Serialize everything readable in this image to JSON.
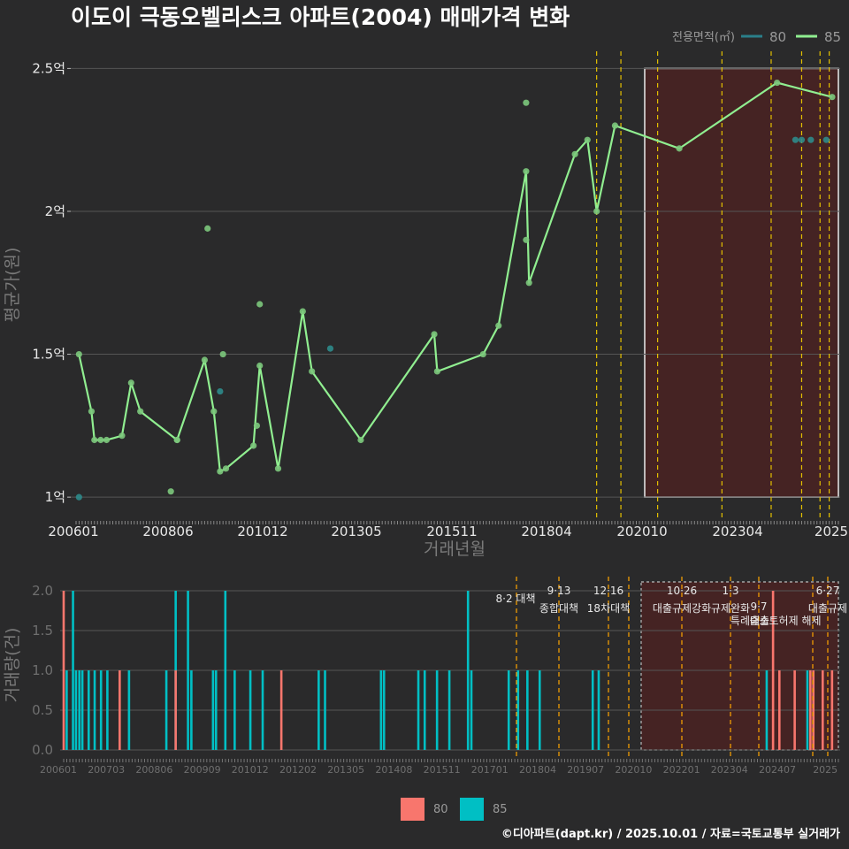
{
  "title": "이도이 극동오벨리스크 아파트(2004) 매매가격 변화",
  "footer": "©디아파트(dapt.kr) / 2025.10.01 / 자료=국토교통부 실거래가",
  "colors": {
    "background": "#2a2a2b",
    "grid": "#555555",
    "series_80_line": "#2a7f8a",
    "series_85_line": "#90ee90",
    "series_80_bar": "#f8766d",
    "series_85_bar": "#00bfc4",
    "policy_line": "#e5c100",
    "policy_line_bottom": "#ffa500",
    "highlight_fill": "#4a2222",
    "highlight_border": "#ffffff"
  },
  "chart_data": [
    {
      "type": "line",
      "name": "price",
      "xlabel": "거래년월",
      "ylabel": "평균가(원)",
      "ylim": [
        0.92,
        2.56
      ],
      "yticks": [
        {
          "v": 1.0,
          "label": "1억"
        },
        {
          "v": 1.5,
          "label": "1.5억"
        },
        {
          "v": 2.0,
          "label": "2억"
        },
        {
          "v": 2.5,
          "label": "2.5억"
        }
      ],
      "xticks": [
        "200601",
        "200806",
        "201012",
        "201305",
        "201511",
        "201804",
        "202010",
        "202304",
        "2025"
      ],
      "legend": {
        "title": "전용면적(㎡)",
        "entries": [
          "80",
          "85"
        ]
      },
      "series": [
        {
          "name": "85",
          "line": true,
          "points": [
            [
              2006.08,
              1.5
            ],
            [
              2006.42,
              1.3
            ],
            [
              2006.5,
              1.2
            ],
            [
              2006.67,
              1.2
            ],
            [
              2006.83,
              1.2
            ],
            [
              2007.25,
              1.215
            ],
            [
              2007.5,
              1.4
            ],
            [
              2007.75,
              1.3
            ],
            [
              2008.75,
              1.2
            ],
            [
              2009.5,
              1.48
            ],
            [
              2009.75,
              1.3
            ],
            [
              2009.92,
              1.09
            ],
            [
              2010.08,
              1.1
            ],
            [
              2010.83,
              1.18
            ],
            [
              2011.0,
              1.46
            ],
            [
              2011.5,
              1.1
            ],
            [
              2012.17,
              1.65
            ],
            [
              2012.42,
              1.44
            ],
            [
              2013.75,
              1.2
            ],
            [
              2015.75,
              1.57
            ],
            [
              2015.83,
              1.44
            ],
            [
              2017.08,
              1.5
            ],
            [
              2017.5,
              1.6
            ],
            [
              2018.25,
              2.14
            ],
            [
              2018.33,
              1.75
            ],
            [
              2019.58,
              2.2
            ],
            [
              2019.92,
              2.25
            ],
            [
              2020.17,
              2.0
            ],
            [
              2020.67,
              2.3
            ],
            [
              2022.42,
              2.22
            ],
            [
              2025.08,
              2.45
            ],
            [
              2026.58,
              2.4
            ]
          ]
        },
        {
          "name": "85-extra",
          "line": false,
          "points": [
            [
              2008.58,
              1.02
            ],
            [
              2010.0,
              1.5
            ],
            [
              2009.58,
              1.94
            ],
            [
              2010.92,
              1.25
            ],
            [
              2011.0,
              1.675
            ],
            [
              2018.25,
              1.9
            ],
            [
              2018.25,
              2.38
            ],
            [
              2008.75,
              1.2
            ]
          ]
        },
        {
          "name": "80",
          "line": false,
          "points": [
            [
              2006.08,
              1.0
            ],
            [
              2009.92,
              1.37
            ],
            [
              2012.92,
              1.52
            ],
            [
              2025.58,
              2.25
            ],
            [
              2025.75,
              2.25
            ],
            [
              2026.0,
              2.25
            ],
            [
              2026.42,
              2.25
            ]
          ]
        }
      ],
      "policy_dates": [
        2020.17,
        2020.83,
        2021.83,
        2023.58,
        2024.92,
        2025.75,
        2026.25,
        2026.5
      ]
    },
    {
      "type": "bar",
      "name": "volume",
      "ylabel": "거래량(건)",
      "ylim": [
        0,
        2.0
      ],
      "yticks": [
        "0.0",
        "0.5",
        "1.0",
        "1.5",
        "2.0"
      ],
      "xticks": [
        "200601",
        "200703",
        "200806",
        "200909",
        "201012",
        "201202",
        "201305",
        "201408",
        "201511",
        "201701",
        "201804",
        "201907",
        "202010",
        "202201",
        "202304",
        "202407",
        "2025"
      ],
      "legend": [
        "80",
        "85"
      ],
      "annotations": [
        {
          "date": "8·2 대책",
          "label": ""
        },
        {
          "date": "9·13",
          "label": "종합대책"
        },
        {
          "date": "12·16",
          "label": "18차대책"
        },
        {
          "date": "10·26",
          "label": "대출규제강화"
        },
        {
          "date": "1·3",
          "label": "규제완화"
        },
        {
          "date": "",
          "label": "특례대출"
        },
        {
          "date": "9·7",
          "label": "출소토허제 해제"
        },
        {
          "date": "6·27",
          "label": "대출규제"
        }
      ],
      "bars_85": [
        [
          2006.08,
          1
        ],
        [
          2006.25,
          2
        ],
        [
          2006.33,
          1
        ],
        [
          2006.42,
          1
        ],
        [
          2006.5,
          1
        ],
        [
          2006.67,
          1
        ],
        [
          2006.83,
          1
        ],
        [
          2007.0,
          1
        ],
        [
          2007.17,
          1
        ],
        [
          2007.75,
          1
        ],
        [
          2008.75,
          1
        ],
        [
          2009.0,
          2
        ],
        [
          2009.33,
          2
        ],
        [
          2009.42,
          1
        ],
        [
          2010.0,
          1
        ],
        [
          2010.08,
          1
        ],
        [
          2010.33,
          2
        ],
        [
          2010.58,
          1
        ],
        [
          2011.0,
          1
        ],
        [
          2011.33,
          1
        ],
        [
          2012.83,
          1
        ],
        [
          2013.0,
          1
        ],
        [
          2014.5,
          1
        ],
        [
          2014.58,
          1
        ],
        [
          2015.5,
          1
        ],
        [
          2015.67,
          1
        ],
        [
          2016.0,
          1
        ],
        [
          2016.33,
          1
        ],
        [
          2016.83,
          2
        ],
        [
          2016.92,
          1
        ],
        [
          2017.92,
          1
        ],
        [
          2018.17,
          1
        ],
        [
          2018.42,
          1
        ],
        [
          2018.75,
          1
        ],
        [
          2020.17,
          1
        ],
        [
          2020.33,
          1
        ],
        [
          2024.83,
          1
        ],
        [
          2025.92,
          1
        ]
      ],
      "bars_80": [
        [
          2006.0,
          2
        ],
        [
          2007.5,
          1
        ],
        [
          2009.0,
          1
        ],
        [
          2011.83,
          1
        ],
        [
          2025.0,
          2
        ],
        [
          2025.17,
          1
        ],
        [
          2025.58,
          1
        ],
        [
          2026.0,
          1
        ],
        [
          2026.08,
          1
        ],
        [
          2026.33,
          1
        ],
        [
          2026.58,
          1
        ]
      ]
    }
  ]
}
